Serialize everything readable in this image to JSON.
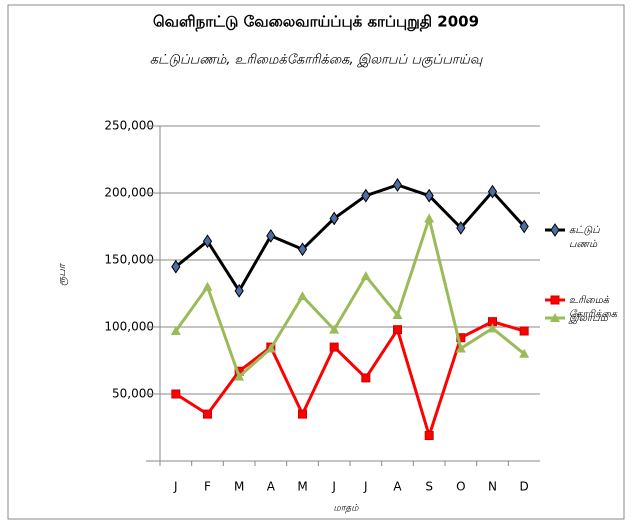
{
  "chart_data": {
    "type": "line",
    "title": "வெளிநாட்டு வேலைவாய்ப்புக் காப்புறுதி 2009",
    "subtitle": "கட்டுப்பணம், உரிமைக்கோரிக்கை, இலாபப் பகுப்பாய்வு",
    "y_label": "ரூபா",
    "x_label": "மாதம்",
    "categories": [
      "J",
      "F",
      "M",
      "A",
      "M",
      "J",
      "J",
      "A",
      "S",
      "O",
      "N",
      "D"
    ],
    "series": [
      {
        "name": "கட்டுப் பணம்",
        "color": "#000000",
        "marker": "diamond",
        "marker_color": "#4a6fa5",
        "values": [
          145000,
          164000,
          127000,
          168000,
          158000,
          181000,
          198000,
          206000,
          198000,
          174000,
          201000,
          175000
        ]
      },
      {
        "name": "உரிமைக் கோரிக்கை",
        "color": "#ff0000",
        "marker": "square",
        "marker_color": "#ff0000",
        "values": [
          50000,
          35000,
          67000,
          85000,
          35000,
          85000,
          62000,
          98000,
          19000,
          92000,
          104000,
          97000
        ]
      },
      {
        "name": "இலாபம்",
        "color": "#9bbb59",
        "marker": "triangle",
        "marker_color": "#9bbb59",
        "values": [
          97000,
          130000,
          63000,
          84000,
          123000,
          98000,
          138000,
          109000,
          181000,
          84000,
          99000,
          80000
        ]
      }
    ],
    "ylim": [
      0,
      250000
    ],
    "yticks": [
      {
        "value": 0,
        "label": "-"
      },
      {
        "value": 50000,
        "label": "50,000"
      },
      {
        "value": 100000,
        "label": "100,000"
      },
      {
        "value": 150000,
        "label": "150,000"
      },
      {
        "value": 200000,
        "label": "200,000"
      },
      {
        "value": 250000,
        "label": "250,000"
      }
    ],
    "grid": true,
    "legend": "right"
  }
}
